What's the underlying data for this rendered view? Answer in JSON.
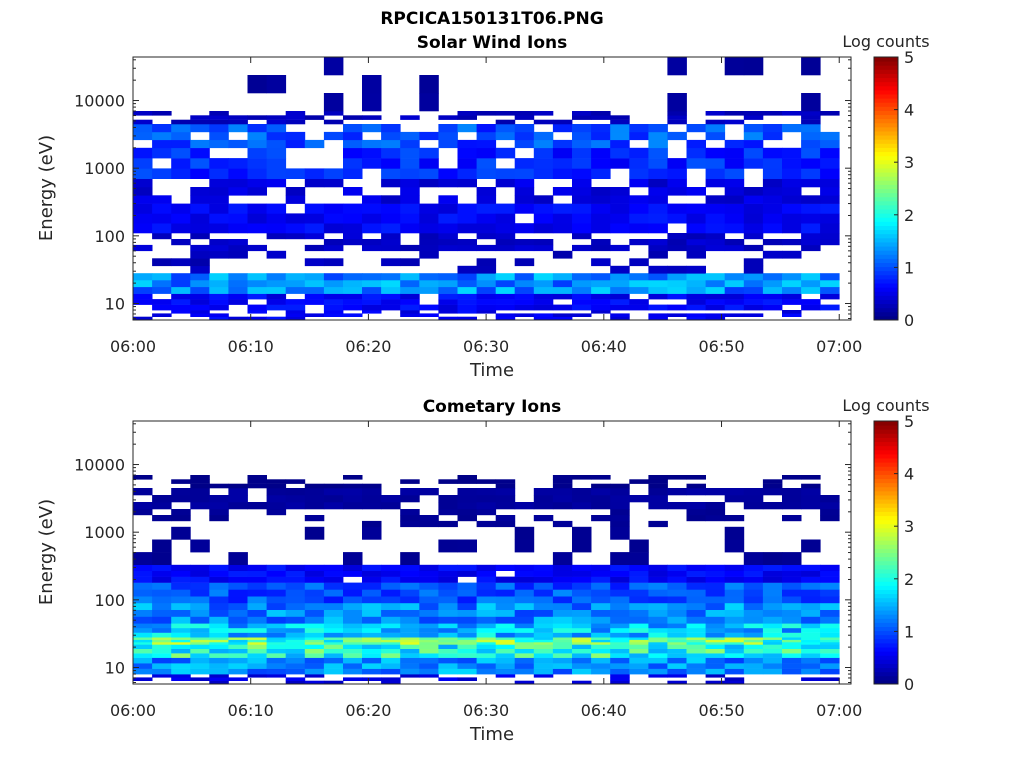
{
  "figure": {
    "title": "RPCICA150131T06.PNG"
  },
  "chart_data": [
    {
      "type": "heatmap",
      "title": "Solar Wind Ions",
      "xlabel": "Time",
      "ylabel": "Energy (eV)",
      "x_ticks": [
        "06:00",
        "06:10",
        "06:20",
        "06:30",
        "06:40",
        "06:50",
        "07:00"
      ],
      "x_range_minutes": [
        0,
        61
      ],
      "y_scale": "log",
      "y_ticks": [
        {
          "value": 10,
          "label": "10"
        },
        {
          "value": 100,
          "label": "100"
        },
        {
          "value": 1000,
          "label": "1000"
        },
        {
          "value": 10000,
          "label": "10000"
        }
      ],
      "y_range": [
        5.7,
        44000
      ],
      "colorbar": {
        "label": "Log counts",
        "range": [
          0,
          5
        ],
        "ticks": [
          "0",
          "1",
          "2",
          "3",
          "4",
          "5"
        ],
        "colormap": "jet"
      },
      "time_bins": 37,
      "energy_bands": [
        {
          "e_low": 5.7,
          "e_high": 8,
          "level": 0.55,
          "presence": 0.45
        },
        {
          "e_low": 8,
          "e_high": 14,
          "level": 0.6,
          "presence": 0.9
        },
        {
          "e_low": 14,
          "e_high": 28,
          "level": 1.3,
          "presence": 1.0
        },
        {
          "e_low": 28,
          "e_high": 60,
          "level": 0.3,
          "presence": 0.35
        },
        {
          "e_low": 60,
          "e_high": 110,
          "level": 0.35,
          "presence": 0.55
        },
        {
          "e_low": 110,
          "e_high": 300,
          "level": 0.6,
          "presence": 0.95
        },
        {
          "e_low": 300,
          "e_high": 700,
          "level": 0.45,
          "presence": 0.6
        },
        {
          "e_low": 700,
          "e_high": 2000,
          "level": 0.8,
          "presence": 0.8
        },
        {
          "e_low": 2000,
          "e_high": 4500,
          "level": 1.0,
          "presence": 0.75
        },
        {
          "e_low": 4500,
          "e_high": 7000,
          "level": 0.3,
          "presence": 0.55
        },
        {
          "e_low": 7000,
          "e_high": 44000,
          "level": 0.15,
          "presence": 0.2
        }
      ]
    },
    {
      "type": "heatmap",
      "title": "Cometary Ions",
      "xlabel": "Time",
      "ylabel": "Energy (eV)",
      "x_ticks": [
        "06:00",
        "06:10",
        "06:20",
        "06:30",
        "06:40",
        "06:50",
        "07:00"
      ],
      "x_range_minutes": [
        0,
        61
      ],
      "y_scale": "log",
      "y_ticks": [
        {
          "value": 10,
          "label": "10"
        },
        {
          "value": 100,
          "label": "100"
        },
        {
          "value": 1000,
          "label": "1000"
        },
        {
          "value": 10000,
          "label": "10000"
        }
      ],
      "y_range": [
        5.7,
        44000
      ],
      "colorbar": {
        "label": "Log counts",
        "range": [
          0,
          5
        ],
        "ticks": [
          "0",
          "1",
          "2",
          "3",
          "4",
          "5"
        ],
        "colormap": "jet"
      },
      "time_bins": 37,
      "energy_bands": [
        {
          "e_low": 5.7,
          "e_high": 8,
          "level": 0.45,
          "presence": 0.35
        },
        {
          "e_low": 8,
          "e_high": 14,
          "level": 1.3,
          "presence": 1.0
        },
        {
          "e_low": 14,
          "e_high": 22,
          "level": 2.0,
          "presence": 1.0
        },
        {
          "e_low": 22,
          "e_high": 28,
          "level": 2.3,
          "presence": 1.0
        },
        {
          "e_low": 28,
          "e_high": 45,
          "level": 1.6,
          "presence": 1.0
        },
        {
          "e_low": 45,
          "e_high": 90,
          "level": 1.3,
          "presence": 1.0
        },
        {
          "e_low": 90,
          "e_high": 180,
          "level": 1.0,
          "presence": 1.0
        },
        {
          "e_low": 180,
          "e_high": 330,
          "level": 0.6,
          "presence": 0.95
        },
        {
          "e_low": 330,
          "e_high": 1200,
          "level": 0.1,
          "presence": 0.25
        },
        {
          "e_low": 1200,
          "e_high": 2200,
          "level": 0.1,
          "presence": 0.3
        },
        {
          "e_low": 2200,
          "e_high": 4500,
          "level": 0.15,
          "presence": 0.8
        },
        {
          "e_low": 4500,
          "e_high": 7000,
          "level": 0.05,
          "presence": 0.4
        },
        {
          "e_low": 7000,
          "e_high": 44000,
          "level": 0.0,
          "presence": 0.0
        }
      ]
    }
  ]
}
